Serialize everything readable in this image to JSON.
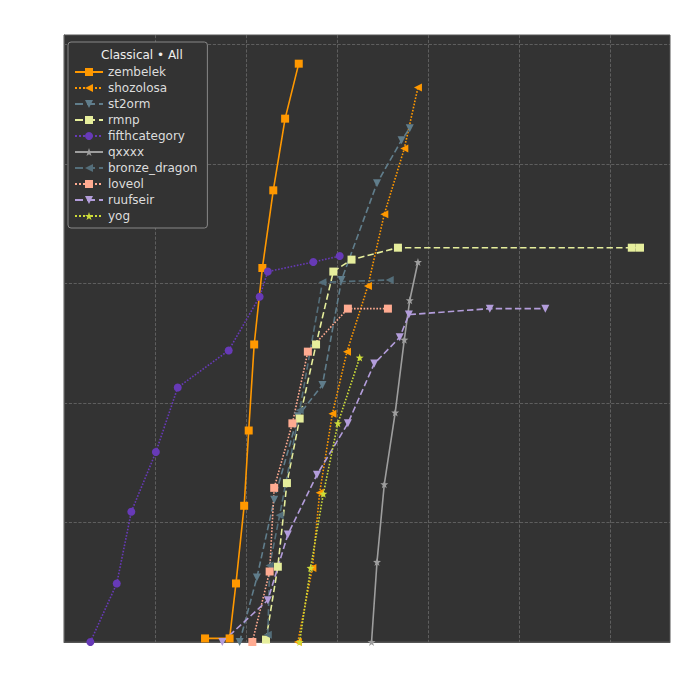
{
  "chart_data": {
    "type": "line",
    "title": "Classical • All",
    "xlim": [
      0,
      6.66
    ],
    "xticks": [
      0,
      1,
      2,
      3,
      4,
      5,
      6
    ],
    "ylim": [
      0,
      5.08
    ],
    "yticks": [
      0,
      1,
      2,
      3,
      4,
      5
    ],
    "grid": true,
    "tick_labels": false,
    "legend": "upper left",
    "series": [
      {
        "name": "zembelek",
        "color": "#ff9800",
        "marker": "square",
        "line_style": "solid",
        "x": [
          1.55,
          1.82,
          1.89,
          1.98,
          2.03,
          2.09,
          2.18,
          2.3,
          2.43,
          2.58
        ],
        "values": [
          0.03,
          0.03,
          0.49,
          1.14,
          1.77,
          2.49,
          3.13,
          3.78,
          4.38,
          4.84
        ]
      },
      {
        "name": "shozolosa",
        "color": "#ff9800",
        "marker": "triangle_left",
        "line_style": "dotted",
        "x": [
          2.57,
          2.73,
          2.81,
          2.95,
          3.11,
          3.34,
          3.52,
          3.74,
          3.89
        ],
        "values": [
          0,
          0.62,
          1.25,
          1.91,
          2.43,
          2.98,
          3.58,
          4.13,
          4.64
        ]
      },
      {
        "name": "st2orm",
        "color": "#607d8b",
        "marker": "triangle_down",
        "line_style": "dashed",
        "x": [
          1.93,
          2.12,
          2.31,
          2.57,
          2.84,
          3.05,
          3.44,
          3.71,
          3.8
        ],
        "values": [
          0,
          0.54,
          1.19,
          1.89,
          2.15,
          3.03,
          3.84,
          4.2,
          4.3
        ]
      },
      {
        "name": "rmnp",
        "color": "#e6ee9c",
        "marker": "square",
        "line_style": "dashed",
        "x": [
          2.22,
          2.35,
          2.45,
          2.59,
          2.77,
          2.96,
          3.16,
          3.67,
          6.24,
          6.33
        ],
        "values": [
          0.02,
          0.63,
          1.33,
          1.87,
          2.49,
          3.1,
          3.2,
          3.3,
          3.3,
          3.3
        ]
      },
      {
        "name": "fifthcategory",
        "color": "#673ab7",
        "marker": "circle",
        "line_style": "dotted",
        "x": [
          0.29,
          0.58,
          0.74,
          1.01,
          1.25,
          1.81,
          2.15,
          2.24,
          2.74,
          3.03
        ],
        "values": [
          0,
          0.49,
          1.09,
          1.59,
          2.13,
          2.44,
          2.89,
          3.1,
          3.18,
          3.23
        ]
      },
      {
        "name": "qxxxx",
        "color": "#9e9e9e",
        "marker": "star",
        "line_style": "solid",
        "x": [
          3.38,
          3.44,
          3.52,
          3.64,
          3.74,
          3.8,
          3.89
        ],
        "values": [
          0,
          0.67,
          1.32,
          1.92,
          2.53,
          2.86,
          3.18
        ]
      },
      {
        "name": "bronze_dragon",
        "color": "#546e7a",
        "marker": "triangle_left",
        "line_style": "dashed",
        "x": [
          2.24,
          2.26,
          2.37,
          2.59,
          2.84,
          3.58
        ],
        "values": [
          0.06,
          0.64,
          1.06,
          1.94,
          3.01,
          3.03
        ]
      },
      {
        "name": "loveol",
        "color": "#ffab91",
        "marker": "square",
        "line_style": "dotted",
        "x": [
          2.07,
          2.26,
          2.31,
          2.51,
          2.68,
          3.12,
          3.56
        ],
        "values": [
          0,
          0.59,
          1.29,
          1.83,
          2.43,
          2.79,
          2.79
        ]
      },
      {
        "name": "ruufseir",
        "color": "#b39ddb",
        "marker": "triangle_down",
        "line_style": "dashed",
        "x": [
          1.74,
          2.24,
          2.46,
          2.78,
          3.12,
          3.41,
          3.69,
          3.79,
          4.68,
          5.29
        ],
        "values": [
          0,
          0.35,
          0.9,
          1.4,
          1.83,
          2.33,
          2.55,
          2.74,
          2.79,
          2.79
        ]
      },
      {
        "name": "yog",
        "color": "#cddc39",
        "marker": "star",
        "line_style": "dotted",
        "x": [
          2.59,
          2.71,
          2.85,
          3.01,
          3.25
        ],
        "values": [
          0,
          0.62,
          1.24,
          1.83,
          2.38
        ]
      }
    ]
  }
}
